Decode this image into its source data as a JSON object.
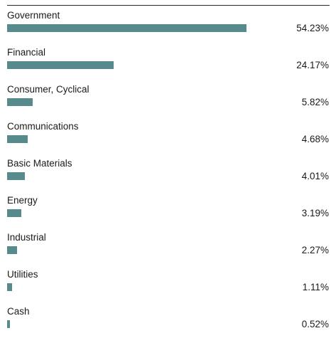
{
  "chart_data": {
    "type": "bar",
    "orientation": "horizontal",
    "categories": [
      "Government",
      "Financial",
      "Consumer, Cyclical",
      "Communications",
      "Basic Materials",
      "Energy",
      "Industrial",
      "Utilities",
      "Cash"
    ],
    "values": [
      54.23,
      24.17,
      5.82,
      4.68,
      4.01,
      3.19,
      2.27,
      1.11,
      0.52
    ],
    "value_labels": [
      "54.23%",
      "24.17%",
      "5.82%",
      "4.68%",
      "4.01%",
      "3.19%",
      "2.27%",
      "1.11%",
      "0.52%"
    ],
    "xlim": [
      0,
      75
    ],
    "grid": false,
    "bar_color": "#568a8c"
  }
}
